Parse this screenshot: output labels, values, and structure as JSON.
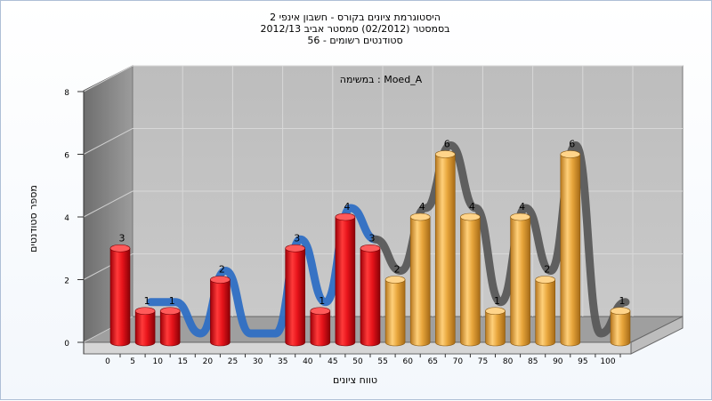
{
  "chart_data": {
    "type": "bar",
    "title_lines": [
      "היסטוגרמת ציונים בקורס - חשבון אינפי 2",
      "בסמסטר (02/2012) סמסטר אביב 2012/13",
      "סטודנטים רשומים - 56"
    ],
    "subtitle": "במשימה : Moed_A",
    "xlabel": "טווח ציונים",
    "ylabel": "מספר סטודנטים",
    "ylim": [
      0,
      8
    ],
    "yticks": [
      0,
      2,
      4,
      6,
      8
    ],
    "categories": [
      "0",
      "5",
      "10",
      "15",
      "20",
      "25",
      "30",
      "35",
      "40",
      "45",
      "50",
      "55",
      "60",
      "65",
      "70",
      "75",
      "80",
      "85",
      "90",
      "95",
      "100"
    ],
    "values": [
      3,
      1,
      1,
      0,
      2,
      0,
      0,
      3,
      1,
      4,
      3,
      2,
      4,
      6,
      4,
      1,
      4,
      2,
      6,
      0,
      1
    ],
    "bar_colors_by_category": [
      "red",
      "red",
      "red",
      "red",
      "red",
      "red",
      "red",
      "red",
      "red",
      "red",
      "red",
      "orange",
      "orange",
      "orange",
      "orange",
      "orange",
      "orange",
      "orange",
      "orange",
      "orange",
      "orange"
    ],
    "colors": {
      "red_bar": "#e8141b",
      "orange_bar": "#e8a63c",
      "curve_blue": "#2f6fc4",
      "curve_gray": "#5a5a5a"
    },
    "grid": true
  }
}
